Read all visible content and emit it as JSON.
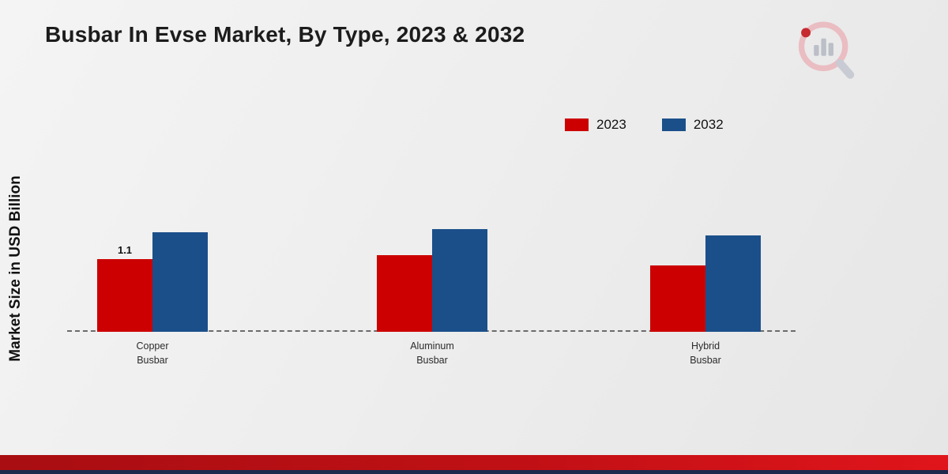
{
  "chart_data": {
    "type": "bar",
    "title": "Busbar In Evse Market, By Type, 2023 & 2032",
    "ylabel": "Market Size in USD Billion",
    "xlabel": "",
    "categories": [
      "Copper Busbar",
      "Aluminum Busbar",
      "Hybrid Busbar"
    ],
    "series": [
      {
        "name": "2023",
        "color": "#cc0000",
        "values": [
          1.1,
          1.15,
          1.0
        ]
      },
      {
        "name": "2032",
        "color": "#1b4f8a",
        "values": [
          1.5,
          1.55,
          1.45
        ]
      }
    ],
    "annotations": [
      {
        "series": "2023",
        "category": "Copper Busbar",
        "text": "1.1"
      }
    ],
    "legend_position": "top-right",
    "baseline_style": "dashed",
    "grid": false
  },
  "footer": {
    "red_stripe_color": "#c01015",
    "navy_stripe_color": "#1b2a4e"
  }
}
